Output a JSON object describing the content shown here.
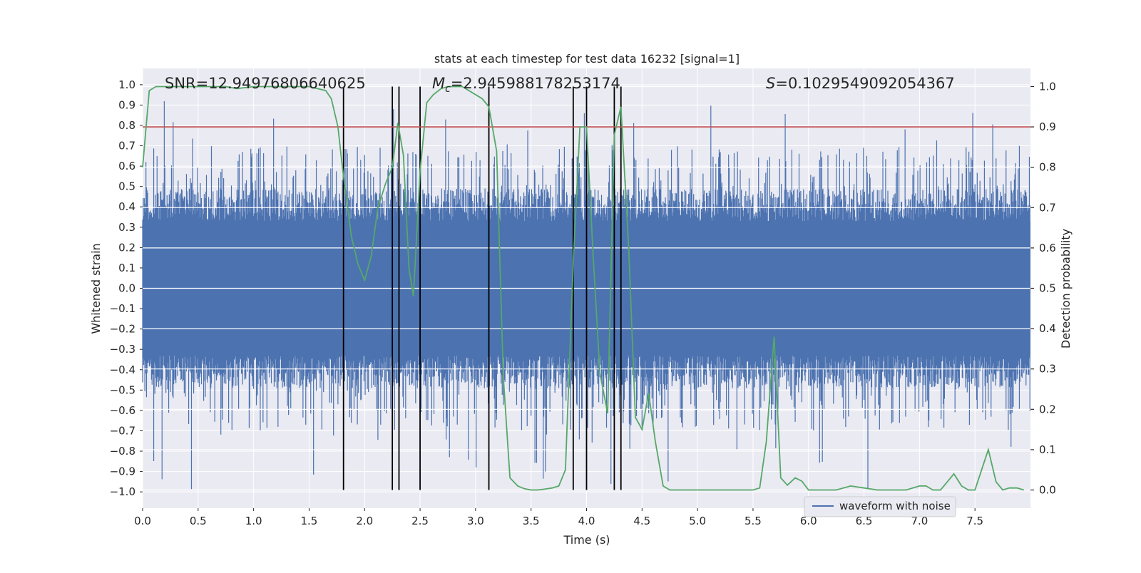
{
  "chart_data": {
    "type": "line",
    "title": "stats at each timestep for test data 16232 [signal=1]",
    "xlabel": "Time (s)",
    "ylabel": "Whitened strain",
    "ylabel_right": "Detection probability",
    "xlim": [
      0.0,
      8.0
    ],
    "ylim": [
      -1.08,
      1.08
    ],
    "ylim_right": [
      -0.045,
      1.045
    ],
    "x_ticks": [
      "0.0",
      "0.5",
      "1.0",
      "1.5",
      "2.0",
      "2.5",
      "3.0",
      "3.5",
      "4.0",
      "4.5",
      "5.0",
      "5.5",
      "6.0",
      "6.5",
      "7.0",
      "7.5"
    ],
    "y_ticks": [
      "1.0",
      "0.9",
      "0.8",
      "0.7",
      "0.6",
      "0.5",
      "0.4",
      "0.3",
      "0.2",
      "0.1",
      "0.0",
      "-0.1",
      "-0.2",
      "-0.3",
      "-0.4",
      "-0.5",
      "-0.6",
      "-0.7",
      "-0.8",
      "-0.9",
      "-1.0"
    ],
    "y_ticks_right": [
      "1.0",
      "0.9",
      "0.8",
      "0.7",
      "0.6",
      "0.5",
      "0.4",
      "0.3",
      "0.2",
      "0.1",
      "0.0"
    ],
    "annotations": {
      "snr": "SNR=12.94976806640625",
      "mc_symbol": "M",
      "mc_subscript": "c",
      "mc_value": "=2.945988178253174",
      "s_symbol": "S",
      "s_value": "=0.1029549092054367"
    },
    "legend": {
      "label": "waveform with noise",
      "position": "bottom-right"
    },
    "threshold": {
      "value": 0.9,
      "axis": "right",
      "color": "#c44e52"
    },
    "vertical_markers": [
      1.81,
      2.25,
      2.31,
      2.5,
      3.12,
      3.88,
      4.0,
      4.25,
      4.31
    ],
    "waveform": {
      "name": "waveform with noise",
      "color": "#4c72b0",
      "x_range": [
        0.0,
        8.0
      ],
      "samples": 1600,
      "core_amplitude": 0.4,
      "peak_max": [
        0.93,
        -0.99
      ]
    },
    "series": [
      {
        "name": "detection probability",
        "axis": "right",
        "color": "#55a868",
        "x": [
          0.0,
          0.06,
          0.12,
          0.25,
          0.5,
          0.75,
          0.85,
          1.0,
          1.25,
          1.5,
          1.65,
          1.7,
          1.76,
          1.8,
          1.88,
          1.94,
          2.0,
          2.06,
          2.12,
          2.19,
          2.25,
          2.3,
          2.35,
          2.4,
          2.44,
          2.5,
          2.56,
          2.62,
          2.69,
          2.75,
          2.81,
          2.88,
          3.0,
          3.06,
          3.12,
          3.19,
          3.25,
          3.31,
          3.38,
          3.44,
          3.5,
          3.56,
          3.62,
          3.69,
          3.75,
          3.81,
          3.88,
          3.94,
          4.0,
          4.06,
          4.12,
          4.19,
          4.25,
          4.31,
          4.38,
          4.44,
          4.5,
          4.56,
          4.62,
          4.69,
          4.75,
          5.0,
          5.25,
          5.5,
          5.56,
          5.62,
          5.69,
          5.75,
          5.81,
          5.88,
          5.94,
          6.0,
          6.06,
          6.12,
          6.25,
          6.38,
          6.5,
          6.62,
          6.75,
          6.88,
          7.0,
          7.06,
          7.12,
          7.19,
          7.25,
          7.31,
          7.38,
          7.44,
          7.5,
          7.56,
          7.62,
          7.69,
          7.75,
          7.81,
          7.88,
          7.94
        ],
        "values": [
          0.8,
          0.99,
          1.0,
          1.0,
          1.0,
          1.0,
          0.995,
          1.0,
          1.0,
          1.0,
          0.99,
          0.97,
          0.9,
          0.8,
          0.63,
          0.56,
          0.52,
          0.58,
          0.7,
          0.76,
          0.8,
          0.91,
          0.83,
          0.55,
          0.48,
          0.79,
          0.96,
          0.98,
          0.995,
          1.0,
          1.0,
          1.0,
          0.98,
          0.97,
          0.95,
          0.84,
          0.28,
          0.03,
          0.01,
          0.003,
          0.0,
          0.0,
          0.002,
          0.005,
          0.01,
          0.05,
          0.56,
          0.9,
          0.9,
          0.58,
          0.29,
          0.19,
          0.88,
          0.95,
          0.6,
          0.18,
          0.15,
          0.24,
          0.12,
          0.01,
          0.0,
          0.0,
          0.0,
          0.0,
          0.005,
          0.12,
          0.38,
          0.03,
          0.012,
          0.03,
          0.022,
          0.0,
          0.0,
          0.0,
          0.0,
          0.01,
          0.005,
          0.0,
          0.0,
          0.0,
          0.01,
          0.01,
          0.0,
          0.0,
          0.02,
          0.04,
          0.01,
          0.0,
          0.0,
          0.05,
          0.1,
          0.02,
          0.0,
          0.005,
          0.005,
          0.0
        ]
      }
    ]
  }
}
